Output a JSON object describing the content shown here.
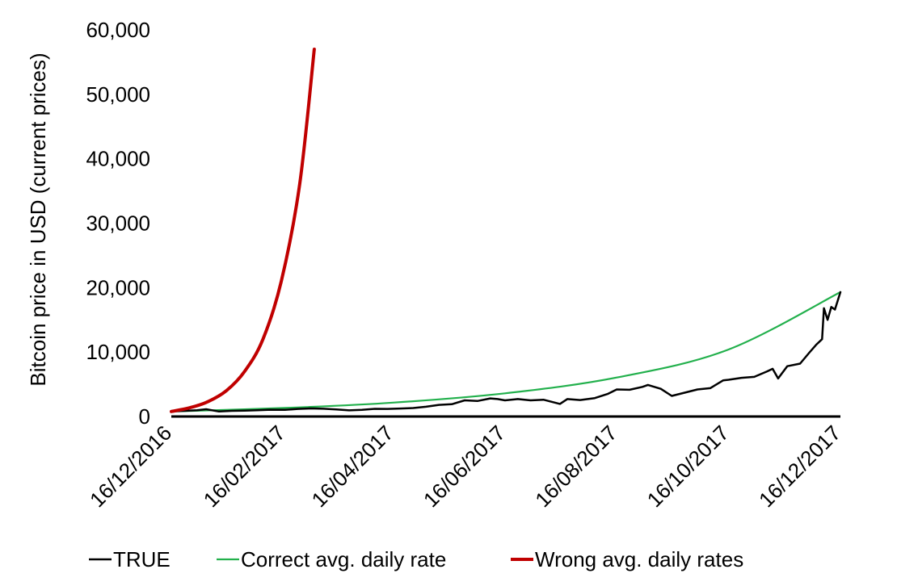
{
  "chart_data": {
    "type": "line",
    "title": "",
    "xlabel": "",
    "ylabel": "Bitcoin price in USD (current prices)",
    "x_range": [
      "2016-12-16",
      "2017-12-16"
    ],
    "ylim": [
      0,
      60000
    ],
    "y_ticks": [
      "0",
      "10,000",
      "20,000",
      "30,000",
      "40,000",
      "50,000",
      "60,000"
    ],
    "y_tick_values": [
      0,
      10000,
      20000,
      30000,
      40000,
      50000,
      60000
    ],
    "x_ticks": [
      "16/12/2016",
      "16/02/2017",
      "16/04/2017",
      "16/06/2017",
      "16/08/2017",
      "16/10/2017",
      "16/12/2017"
    ],
    "x_tick_dates": [
      "2016-12-16",
      "2017-02-16",
      "2017-04-16",
      "2017-06-16",
      "2017-08-16",
      "2017-10-16",
      "2017-12-16"
    ],
    "grid": false,
    "legend_position": "bottom",
    "series": [
      {
        "name": "TRUE",
        "color": "#000000",
        "points": [
          [
            "2016-12-16",
            780
          ],
          [
            "2016-12-23",
            880
          ],
          [
            "2016-12-30",
            960
          ],
          [
            "2017-01-04",
            1130
          ],
          [
            "2017-01-11",
            780
          ],
          [
            "2017-01-18",
            880
          ],
          [
            "2017-01-25",
            900
          ],
          [
            "2017-02-01",
            970
          ],
          [
            "2017-02-08",
            1050
          ],
          [
            "2017-02-16",
            1030
          ],
          [
            "2017-02-23",
            1180
          ],
          [
            "2017-03-02",
            1250
          ],
          [
            "2017-03-09",
            1200
          ],
          [
            "2017-03-16",
            1100
          ],
          [
            "2017-03-23",
            950
          ],
          [
            "2017-03-30",
            1040
          ],
          [
            "2017-04-06",
            1190
          ],
          [
            "2017-04-13",
            1180
          ],
          [
            "2017-04-20",
            1240
          ],
          [
            "2017-04-27",
            1320
          ],
          [
            "2017-05-04",
            1520
          ],
          [
            "2017-05-11",
            1800
          ],
          [
            "2017-05-18",
            1900
          ],
          [
            "2017-05-25",
            2500
          ],
          [
            "2017-06-01",
            2400
          ],
          [
            "2017-06-08",
            2800
          ],
          [
            "2017-06-12",
            2700
          ],
          [
            "2017-06-16",
            2500
          ],
          [
            "2017-06-23",
            2700
          ],
          [
            "2017-06-30",
            2500
          ],
          [
            "2017-07-07",
            2600
          ],
          [
            "2017-07-16",
            1950
          ],
          [
            "2017-07-20",
            2700
          ],
          [
            "2017-07-27",
            2550
          ],
          [
            "2017-08-04",
            2850
          ],
          [
            "2017-08-11",
            3500
          ],
          [
            "2017-08-16",
            4200
          ],
          [
            "2017-08-23",
            4150
          ],
          [
            "2017-08-30",
            4600
          ],
          [
            "2017-09-02",
            4900
          ],
          [
            "2017-09-09",
            4300
          ],
          [
            "2017-09-15",
            3200
          ],
          [
            "2017-09-22",
            3700
          ],
          [
            "2017-09-29",
            4200
          ],
          [
            "2017-10-06",
            4400
          ],
          [
            "2017-10-13",
            5600
          ],
          [
            "2017-10-16",
            5700
          ],
          [
            "2017-10-23",
            6000
          ],
          [
            "2017-10-30",
            6150
          ],
          [
            "2017-11-06",
            7000
          ],
          [
            "2017-11-09",
            7400
          ],
          [
            "2017-11-12",
            5900
          ],
          [
            "2017-11-17",
            7800
          ],
          [
            "2017-11-24",
            8200
          ],
          [
            "2017-11-29",
            9900
          ],
          [
            "2017-12-03",
            11200
          ],
          [
            "2017-12-06",
            12000
          ],
          [
            "2017-12-07",
            16800
          ],
          [
            "2017-12-09",
            15000
          ],
          [
            "2017-12-11",
            17000
          ],
          [
            "2017-12-13",
            16600
          ],
          [
            "2017-12-16",
            19300
          ]
        ]
      },
      {
        "name": "Correct avg. daily rate",
        "color": "#22b04c",
        "points": [
          [
            "2016-12-16",
            780
          ],
          [
            "2017-02-16",
            1330
          ],
          [
            "2017-04-16",
            2150
          ],
          [
            "2017-06-16",
            3600
          ],
          [
            "2017-08-16",
            6050
          ],
          [
            "2017-10-16",
            10400
          ],
          [
            "2017-12-16",
            19300
          ]
        ]
      },
      {
        "name": "Wrong avg. daily rates",
        "color": "#c00000",
        "points": [
          [
            "2016-12-16",
            780
          ],
          [
            "2016-12-26",
            1350
          ],
          [
            "2017-01-05",
            2300
          ],
          [
            "2017-01-15",
            4000
          ],
          [
            "2017-01-25",
            7000
          ],
          [
            "2017-02-04",
            12000
          ],
          [
            "2017-02-14",
            21000
          ],
          [
            "2017-02-24",
            36000
          ],
          [
            "2017-03-04",
            57000
          ]
        ]
      }
    ]
  },
  "legend": [
    {
      "label": "TRUE",
      "color": "#000000"
    },
    {
      "label": "Correct avg. daily rate",
      "color": "#22b04c"
    },
    {
      "label": "Wrong avg. daily rates",
      "color": "#c00000"
    }
  ]
}
